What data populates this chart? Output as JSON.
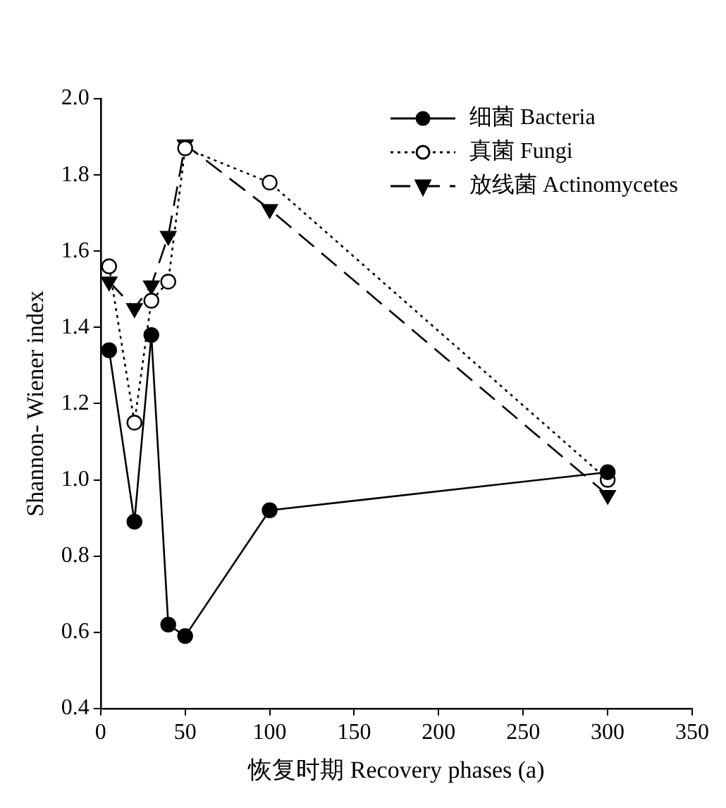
{
  "chart_data": {
    "type": "line",
    "xlabel": "恢复时期 Recovery phases (a)",
    "ylabel": "Shannon- Wiener index",
    "x": [
      5,
      20,
      30,
      40,
      50,
      100,
      300
    ],
    "series": [
      {
        "name": "细菌 Bacteria",
        "color": "#000000",
        "marker": "circle",
        "line_style": "solid",
        "values": [
          1.34,
          0.89,
          1.38,
          0.62,
          0.59,
          0.92,
          1.02
        ]
      },
      {
        "name": "真菌 Fungi",
        "color": "#000000",
        "marker": "circle",
        "line_style": "dotted",
        "values": [
          1.56,
          1.15,
          1.47,
          1.52,
          1.87,
          1.78,
          1.0
        ]
      },
      {
        "name": "放线菌 Actinomycetes",
        "color": "#000000",
        "marker": "triangle",
        "line_style": "dashed",
        "values": [
          1.52,
          1.45,
          1.51,
          1.64,
          1.88,
          1.71,
          0.96
        ]
      }
    ],
    "xlim": [
      0,
      350
    ],
    "xticks": [
      0,
      50,
      100,
      150,
      200,
      250,
      300,
      350
    ],
    "ylim": [
      0.4,
      2.0
    ],
    "yticks": [
      {
        "value": 0.4,
        "label": "0.4"
      },
      {
        "value": 0.6,
        "label": "0.6"
      },
      {
        "value": 0.8,
        "label": "0.8"
      },
      {
        "value": 1.0,
        "label": "1.0"
      },
      {
        "value": 1.2,
        "label": "1.2"
      },
      {
        "value": 1.4,
        "label": "1.4"
      },
      {
        "value": 1.6,
        "label": "1.6"
      },
      {
        "value": 1.8,
        "label": "1.8"
      },
      {
        "value": 2.0,
        "label": "2.0"
      }
    ],
    "grid": false,
    "legend": "top right"
  }
}
